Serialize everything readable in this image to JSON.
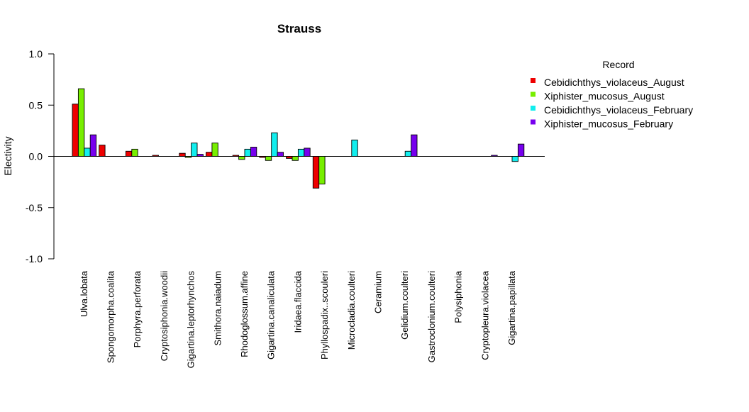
{
  "chart_data": {
    "type": "bar",
    "title": "Strauss",
    "xlabel": "",
    "ylabel": "Electivity",
    "ylim": [
      -1.0,
      1.0
    ],
    "yticks": [
      "1.0",
      "0.5",
      "0.0",
      "-0.5",
      "-1.0"
    ],
    "grid": false,
    "legend_position": "right",
    "legend_title": "Record",
    "categories": [
      "Ulva.lobata",
      "Spongomorpha.coalita",
      "Porphyra.perforata",
      "Cryptosiphonia.woodii",
      "Gigartina.leptorhynchos",
      "Smithora.naiadum",
      "Rhodoglossum.affine",
      "Gigartina.canaliculata",
      "Iridaea.flaccida",
      "Phyllospadix..scouleri",
      "Microcladia.coulteri",
      "Ceramium",
      "Gelidium.coulteri",
      "Gastroclonium.coulteri",
      "Polysiphonia",
      "Cryptopleura.violacea",
      "Gigartina.papillata"
    ],
    "series": [
      {
        "name": "Cebidichthys_violaceus_August",
        "color": "#ee0000",
        "values": [
          0.51,
          0.11,
          0.05,
          0.01,
          0.03,
          0.04,
          0.01,
          -0.01,
          -0.02,
          -0.31,
          0.0,
          0.0,
          0.0,
          0.0,
          0.0,
          0.0,
          0.0
        ]
      },
      {
        "name": "Xiphister_mucosus_August",
        "color": "#77ee00",
        "values": [
          0.66,
          0.0,
          0.07,
          0.0,
          -0.01,
          0.13,
          -0.03,
          -0.04,
          -0.04,
          -0.27,
          0.0,
          0.0,
          0.0,
          0.0,
          0.0,
          0.0,
          0.0
        ]
      },
      {
        "name": "Cebidichthys_violaceus_February",
        "color": "#11eeee",
        "values": [
          0.08,
          0.0,
          0.0,
          0.0,
          0.13,
          0.0,
          0.07,
          0.23,
          0.07,
          0.0,
          0.16,
          0.0,
          0.05,
          0.0,
          0.0,
          0.0,
          -0.05
        ]
      },
      {
        "name": "Xiphister_mucosus_February",
        "color": "#7700ee",
        "values": [
          0.21,
          0.0,
          0.0,
          0.0,
          0.02,
          0.0,
          0.09,
          0.04,
          0.08,
          0.0,
          0.0,
          0.0,
          0.21,
          0.0,
          0.0,
          0.01,
          0.12
        ]
      }
    ]
  }
}
